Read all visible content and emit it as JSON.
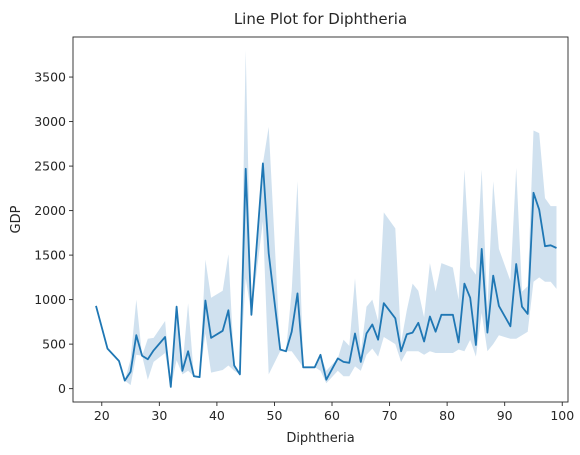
{
  "chart_data": {
    "type": "line",
    "title": "Line Plot for Diphtheria",
    "xlabel": "Diphtheria",
    "ylabel": "GDP",
    "xlim": [
      15.0,
      101.0
    ],
    "ylim": [
      -150,
      3950
    ],
    "xticks": [
      20,
      30,
      40,
      50,
      60,
      70,
      80,
      90,
      100
    ],
    "yticks": [
      0,
      500,
      1000,
      1500,
      2000,
      2500,
      3000,
      3500
    ],
    "grid": false,
    "legend": "none",
    "line_color": "#1f77b4",
    "band_color": "#aac8e2",
    "series": [
      {
        "x": [
          19,
          21,
          23,
          24,
          25,
          26,
          27,
          28,
          29,
          31,
          32,
          33,
          34,
          35,
          36,
          37,
          38,
          39,
          41,
          42,
          43,
          44,
          45,
          46,
          48,
          49,
          51,
          52,
          53,
          54,
          55,
          57,
          58,
          59,
          61,
          62,
          63,
          64,
          65,
          66,
          67,
          68,
          69,
          71,
          72,
          73,
          74,
          75,
          76,
          77,
          78,
          79,
          81,
          82,
          83,
          84,
          85,
          86,
          87,
          88,
          89,
          91,
          92,
          93,
          94,
          95,
          96,
          97,
          98,
          99
        ],
        "y": [
          930,
          450,
          310,
          90,
          190,
          600,
          370,
          330,
          430,
          580,
          20,
          920,
          200,
          420,
          140,
          130,
          990,
          570,
          650,
          880,
          260,
          160,
          2470,
          830,
          2530,
          1520,
          440,
          420,
          640,
          1070,
          240,
          240,
          380,
          100,
          340,
          300,
          290,
          620,
          300,
          620,
          720,
          550,
          960,
          790,
          420,
          610,
          630,
          740,
          530,
          810,
          640,
          830,
          830,
          520,
          1180,
          1020,
          490,
          1570,
          630,
          1270,
          930,
          700,
          1400,
          920,
          840,
          2200,
          2010,
          1600,
          1610,
          1580
        ],
        "lower": [
          930,
          450,
          310,
          90,
          40,
          380,
          370,
          100,
          300,
          400,
          20,
          320,
          160,
          200,
          140,
          130,
          620,
          180,
          210,
          260,
          200,
          160,
          1240,
          830,
          1880,
          160,
          420,
          420,
          420,
          330,
          240,
          240,
          200,
          60,
          200,
          140,
          140,
          250,
          200,
          380,
          450,
          360,
          580,
          500,
          300,
          420,
          420,
          420,
          380,
          420,
          400,
          400,
          400,
          440,
          420,
          550,
          360,
          850,
          420,
          500,
          600,
          560,
          560,
          600,
          640,
          1200,
          1250,
          1200,
          1200,
          1120
        ],
        "upper": [
          930,
          450,
          310,
          90,
          330,
          1000,
          370,
          560,
          570,
          760,
          20,
          950,
          240,
          960,
          140,
          130,
          1450,
          1020,
          1100,
          1510,
          260,
          160,
          3800,
          830,
          2530,
          2940,
          440,
          420,
          1100,
          2330,
          240,
          240,
          380,
          200,
          340,
          550,
          480,
          1240,
          400,
          920,
          1000,
          760,
          1980,
          1800,
          520,
          880,
          1180,
          1100,
          800,
          1410,
          1090,
          1410,
          1360,
          1000,
          2460,
          1370,
          1280,
          2460,
          900,
          2330,
          1570,
          1210,
          2480,
          1090,
          1150,
          2900,
          2870,
          2140,
          2050,
          2050
        ]
      }
    ]
  }
}
